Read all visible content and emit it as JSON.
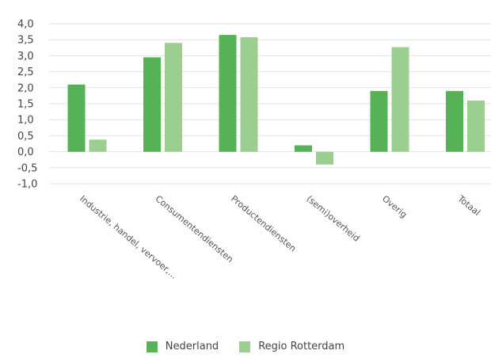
{
  "chart_data": {
    "type": "bar",
    "title": "",
    "xlabel": "",
    "ylabel": "",
    "ylim": [
      -1.0,
      4.0
    ],
    "ytick_step": 0.5,
    "ytick_labels": [
      "4,0",
      "3,5",
      "3,0",
      "2,5",
      "2,0",
      "1,5",
      "1,0",
      "0,5",
      "0,0",
      "-0,5",
      "-1,0"
    ],
    "grid": true,
    "legend_position": "bottom",
    "categories": [
      "Industrie, handel, vervoer,...",
      "Consumentendiensten",
      "Productendiensten",
      "(semi)overheid",
      "Overig",
      "Totaal"
    ],
    "series": [
      {
        "name": "Nederland",
        "color": "#55b255",
        "values": [
          2.1,
          2.95,
          3.65,
          0.2,
          1.9,
          1.9
        ]
      },
      {
        "name": "Regio Rotterdam",
        "color": "#9ccf8f",
        "values": [
          0.38,
          3.4,
          3.58,
          -0.4,
          3.27,
          1.6
        ]
      }
    ]
  }
}
